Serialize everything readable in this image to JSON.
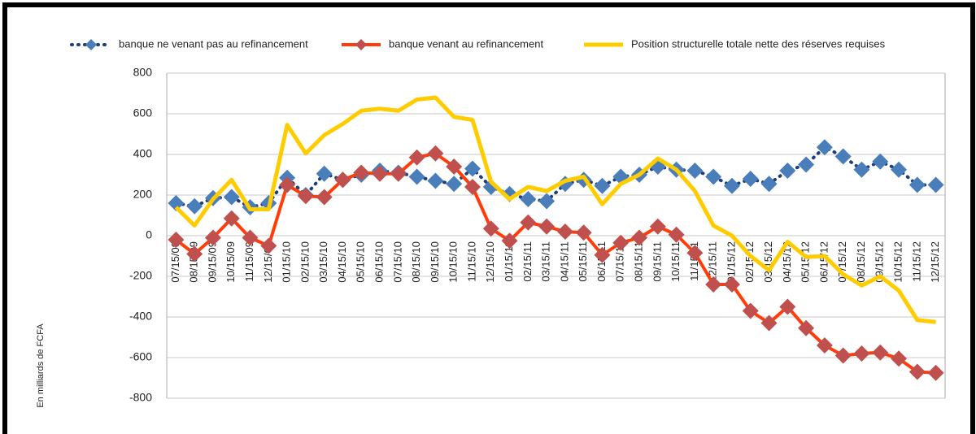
{
  "chart_data": {
    "type": "line",
    "y_label": "En milliards de FCFA",
    "categories": [
      "07/15/09",
      "08/15/09",
      "09/15/09",
      "10/15/09",
      "11/15/09",
      "12/15/09",
      "01/15/10",
      "02/15/10",
      "03/15/10",
      "04/15/10",
      "05/15/10",
      "06/15/10",
      "07/15/10",
      "08/15/10",
      "09/15/10",
      "10/15/10",
      "11/15/10",
      "12/15/10",
      "01/15/11",
      "02/15/11",
      "03/15/11",
      "04/15/11",
      "05/15/11",
      "06/15/11",
      "07/15/11",
      "08/15/11",
      "09/15/11",
      "10/15/11",
      "11/15/11",
      "12/15/11",
      "01/15/12",
      "02/15/12",
      "03/15/12",
      "04/15/12",
      "05/15/12",
      "06/15/12",
      "07/15/12",
      "08/15/12",
      "09/15/12",
      "10/15/12",
      "11/15/12",
      "12/15/12"
    ],
    "series": [
      {
        "name": "banque ne venant pas au refinancement",
        "color": "#4a7ebb",
        "line_color": "#1f3f7a",
        "values": [
          160,
          145,
          185,
          190,
          140,
          160,
          285,
          200,
          305,
          275,
          300,
          320,
          310,
          290,
          270,
          255,
          330,
          240,
          205,
          180,
          170,
          255,
          275,
          245,
          290,
          300,
          340,
          325,
          320,
          290,
          245,
          280,
          255,
          320,
          350,
          435,
          390,
          325,
          365,
          325,
          250,
          250
        ]
      },
      {
        "name": "banque venant au refinancement",
        "color": "#c0504d",
        "line_color": "#ff3c0a",
        "values": [
          -20,
          -90,
          -10,
          85,
          -10,
          -50,
          250,
          195,
          190,
          275,
          310,
          305,
          305,
          385,
          405,
          340,
          240,
          35,
          -25,
          65,
          45,
          20,
          15,
          -95,
          -35,
          -10,
          45,
          5,
          -85,
          -240,
          -240,
          -370,
          -430,
          -350,
          -455,
          -540,
          -590,
          -580,
          -575,
          -605,
          -670,
          -675
        ]
      },
      {
        "name": "Position structurelle totale nette des réserves requises",
        "color": "#ffcc00",
        "values": [
          140,
          50,
          180,
          275,
          130,
          130,
          545,
          405,
          495,
          550,
          615,
          625,
          615,
          670,
          680,
          585,
          570,
          265,
          180,
          240,
          220,
          270,
          290,
          155,
          255,
          300,
          380,
          325,
          220,
          50,
          0,
          -100,
          -170,
          -30,
          -105,
          -100,
          -190,
          -245,
          -200,
          -270,
          -415,
          -425
        ]
      }
    ],
    "ylim": [
      -800,
      800
    ],
    "yticks": [
      -800,
      -600,
      -400,
      -200,
      0,
      200,
      400,
      600,
      800
    ],
    "grid": true
  }
}
